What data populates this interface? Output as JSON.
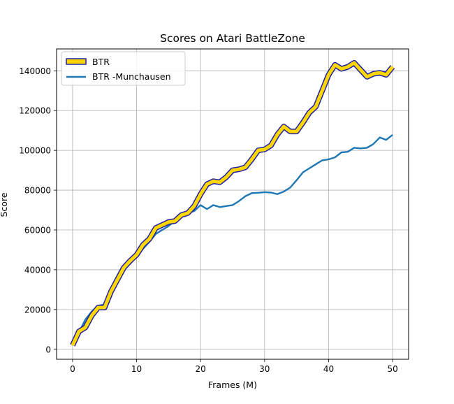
{
  "chart_data": {
    "type": "line",
    "title": "Scores on Atari BattleZone",
    "xlabel": "Frames (M)",
    "ylabel": "Score",
    "xlim": [
      -2.5,
      52.5
    ],
    "ylim": [
      -5000,
      151000
    ],
    "xticks": [
      0,
      10,
      20,
      30,
      40,
      50
    ],
    "yticks": [
      0,
      20000,
      40000,
      60000,
      80000,
      100000,
      120000,
      140000
    ],
    "grid": true,
    "legend_position": "upper-left",
    "x": [
      0,
      1,
      2,
      3,
      4,
      5,
      6,
      7,
      8,
      9,
      10,
      11,
      12,
      13,
      14,
      15,
      16,
      17,
      18,
      19,
      20,
      21,
      22,
      23,
      24,
      25,
      26,
      27,
      28,
      29,
      30,
      31,
      32,
      33,
      34,
      35,
      36,
      37,
      38,
      39,
      40,
      41,
      42,
      43,
      44,
      45,
      46,
      47,
      48,
      49,
      50
    ],
    "series": [
      {
        "name": "BTR",
        "color": "#ffd700",
        "edge_color": "#1f22a8",
        "values": [
          2000,
          9000,
          11000,
          17000,
          21000,
          21000,
          29000,
          35000,
          41000,
          44500,
          47500,
          52500,
          55500,
          61000,
          62500,
          64000,
          64500,
          67500,
          68500,
          72000,
          78000,
          83000,
          84500,
          84000,
          86500,
          90000,
          90500,
          91500,
          95500,
          100000,
          100500,
          102500,
          108000,
          112000,
          109500,
          109500,
          114000,
          119000,
          122000,
          130000,
          138000,
          143000,
          141000,
          142000,
          144000,
          140500,
          137000,
          138500,
          139000,
          138000,
          142000
        ]
      },
      {
        "name": "BTR -Munchausen",
        "color": "#1f77b4",
        "values": [
          2000,
          8500,
          15000,
          19000,
          22000,
          22500,
          30000,
          36000,
          40500,
          43500,
          46500,
          50500,
          54000,
          58000,
          60000,
          62000,
          64500,
          66500,
          68500,
          69500,
          72500,
          70500,
          72500,
          71500,
          72000,
          72500,
          74500,
          77000,
          78500,
          78700,
          79000,
          78800,
          78000,
          79300,
          81300,
          85000,
          89000,
          91000,
          93000,
          95000,
          95500,
          96500,
          99000,
          99300,
          101300,
          101000,
          101300,
          103200,
          106500,
          105300,
          107800
        ]
      }
    ]
  }
}
